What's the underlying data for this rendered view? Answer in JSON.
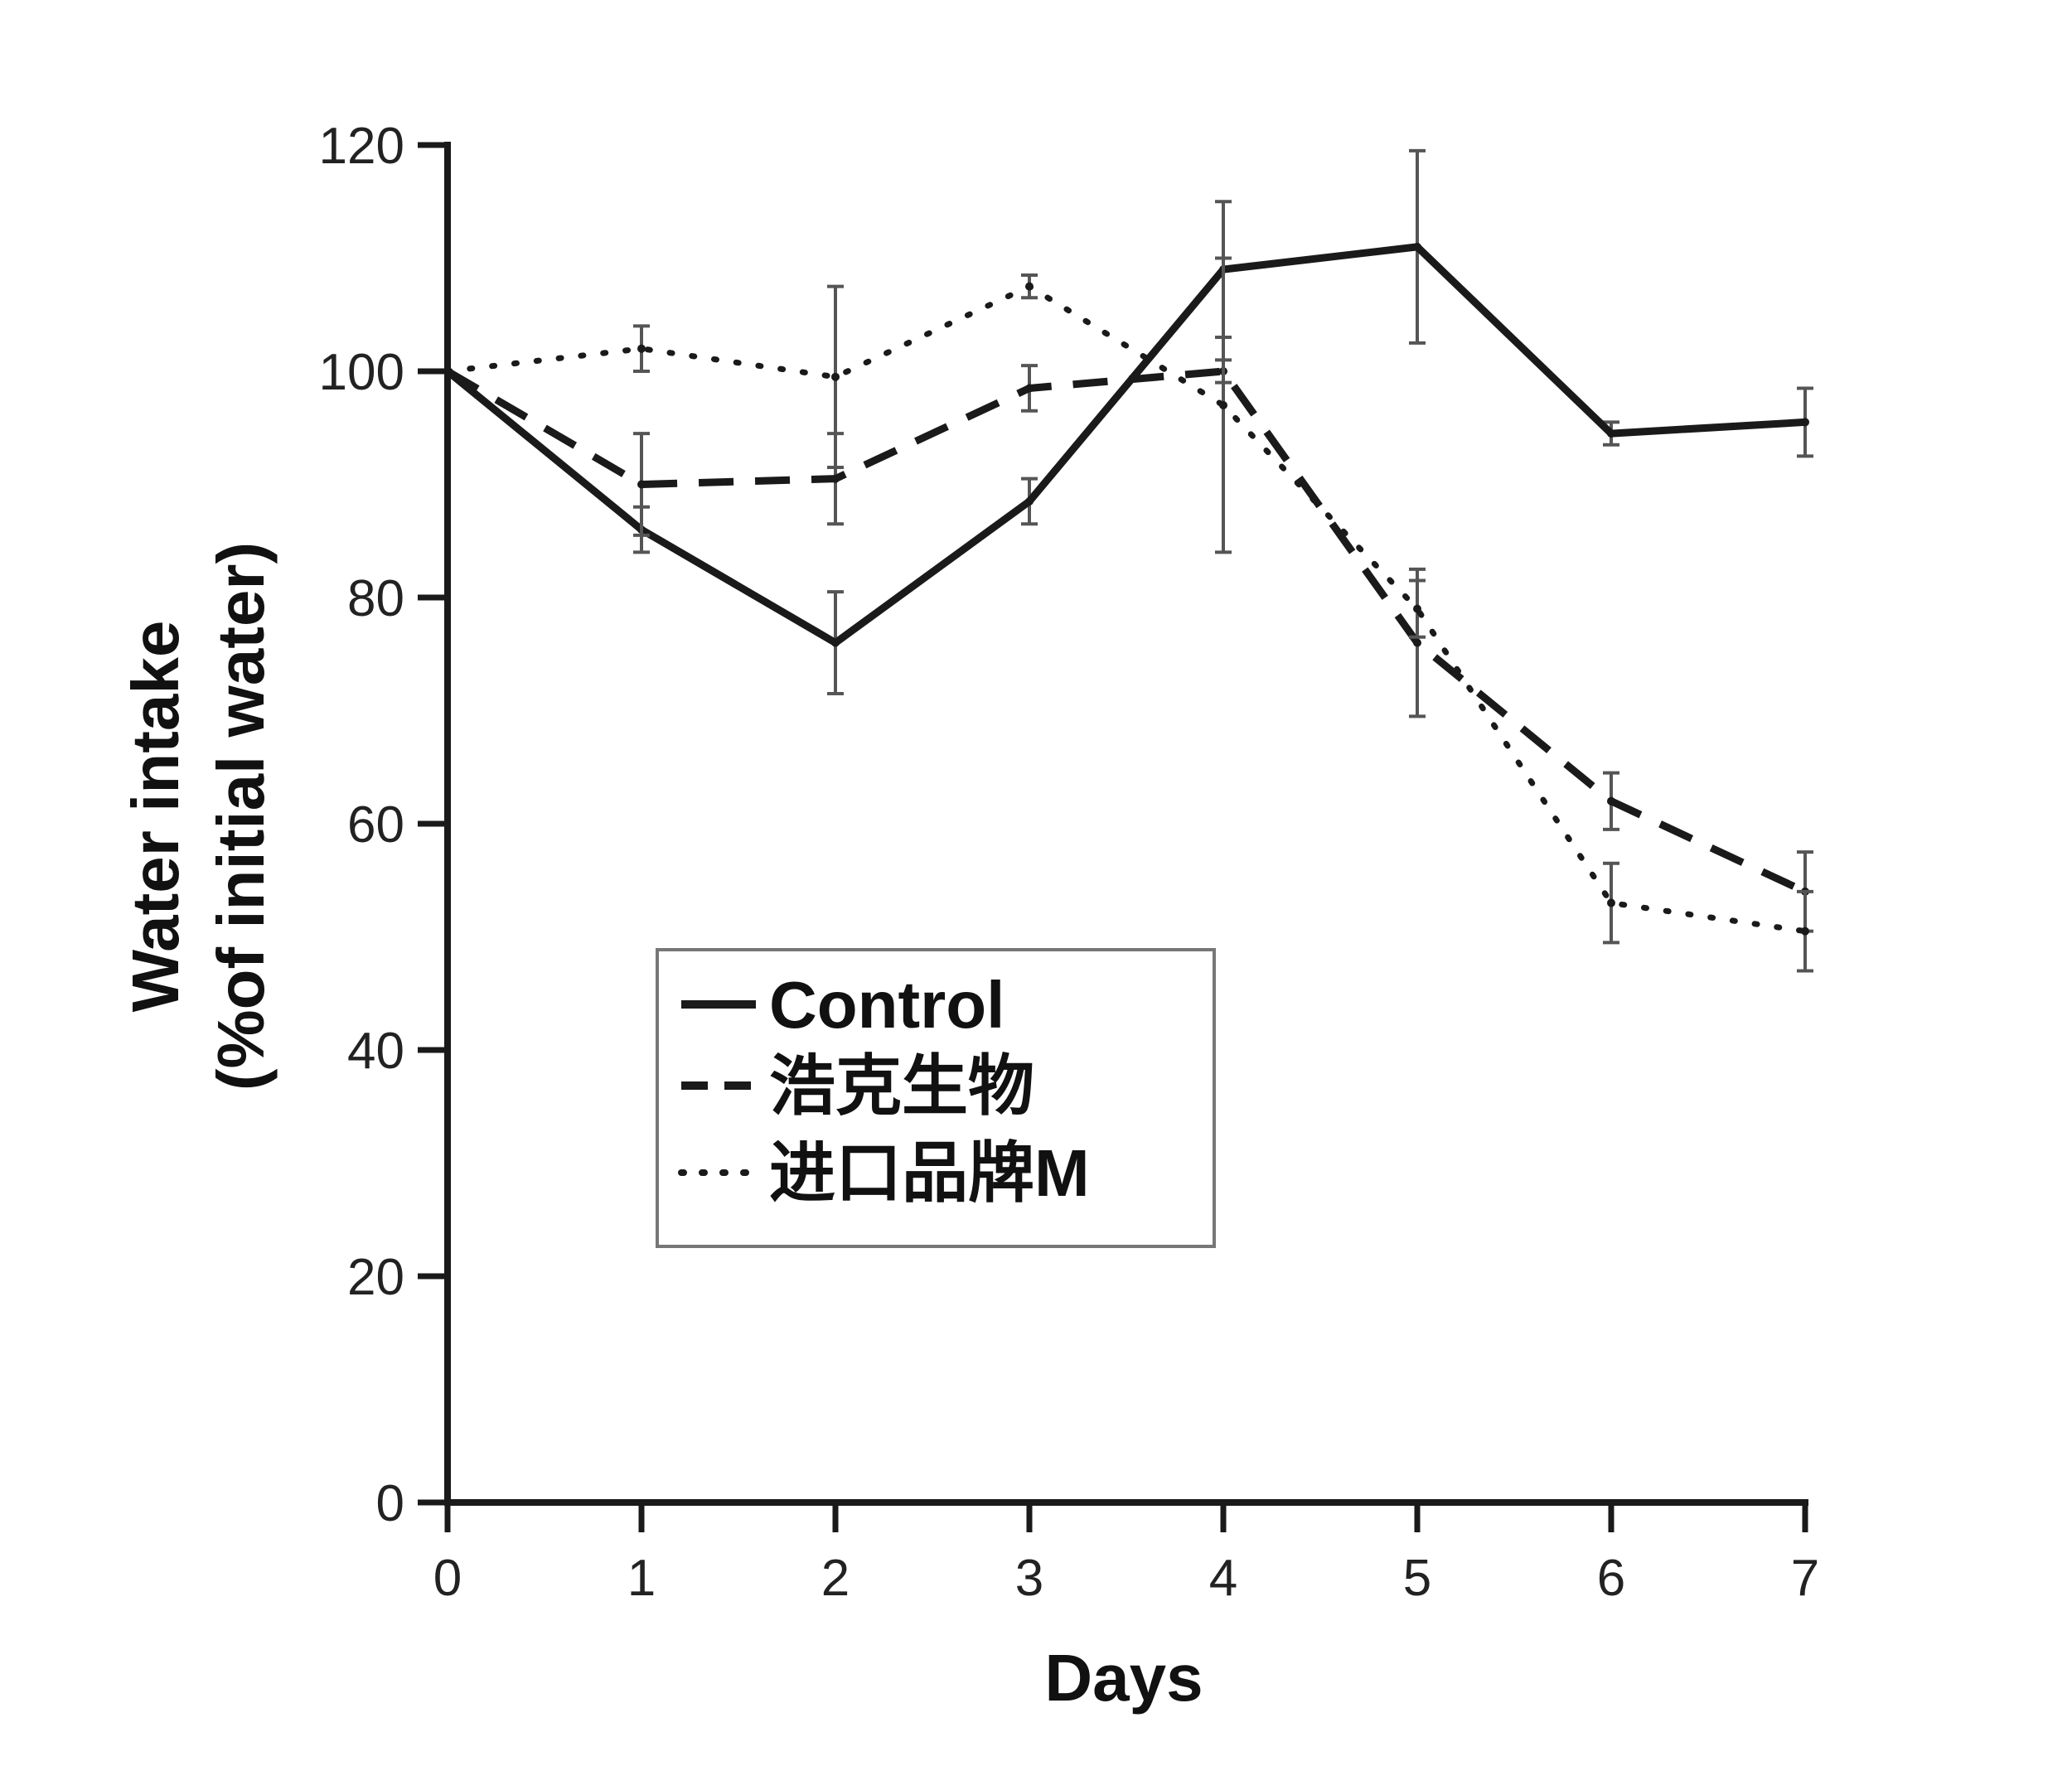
{
  "chart_data": {
    "type": "line",
    "xlabel": "Days",
    "ylabel_line1": "Water intake",
    "ylabel_line2": "(%of initial water)",
    "x": [
      0,
      1,
      2,
      3,
      4,
      5,
      6,
      7
    ],
    "xlim": [
      0,
      7
    ],
    "ylim": [
      0,
      120
    ],
    "x_ticks": [
      "0",
      "1",
      "2",
      "3",
      "4",
      "5",
      "6",
      "7"
    ],
    "y_ticks": [
      "0",
      "20",
      "40",
      "60",
      "80",
      "100",
      "120"
    ],
    "grid": false,
    "legend_position": "center-left",
    "series": [
      {
        "name": "Control",
        "style": "solid",
        "values": [
          100,
          86,
          76,
          88.5,
          109,
          111,
          94.5,
          95.5
        ],
        "errors": [
          0,
          2,
          4.5,
          2,
          6,
          8.5,
          1,
          3
        ]
      },
      {
        "name": "浩克生物",
        "style": "dashed",
        "values": [
          100,
          90,
          90.5,
          98.5,
          100,
          76,
          62,
          54
        ],
        "errors": [
          0,
          4.5,
          4,
          2,
          1,
          6.5,
          2.5,
          3.5
        ]
      },
      {
        "name": "进口品牌M",
        "style": "dotted",
        "values": [
          100,
          102,
          99.5,
          107.5,
          97,
          79,
          53,
          50.5
        ],
        "errors": [
          0,
          2,
          8,
          1,
          13,
          2.5,
          3.5,
          3.5
        ]
      }
    ]
  },
  "colors": {
    "line": "#1a1a1a",
    "error_bar": "#555555",
    "legend_border": "#777777"
  }
}
